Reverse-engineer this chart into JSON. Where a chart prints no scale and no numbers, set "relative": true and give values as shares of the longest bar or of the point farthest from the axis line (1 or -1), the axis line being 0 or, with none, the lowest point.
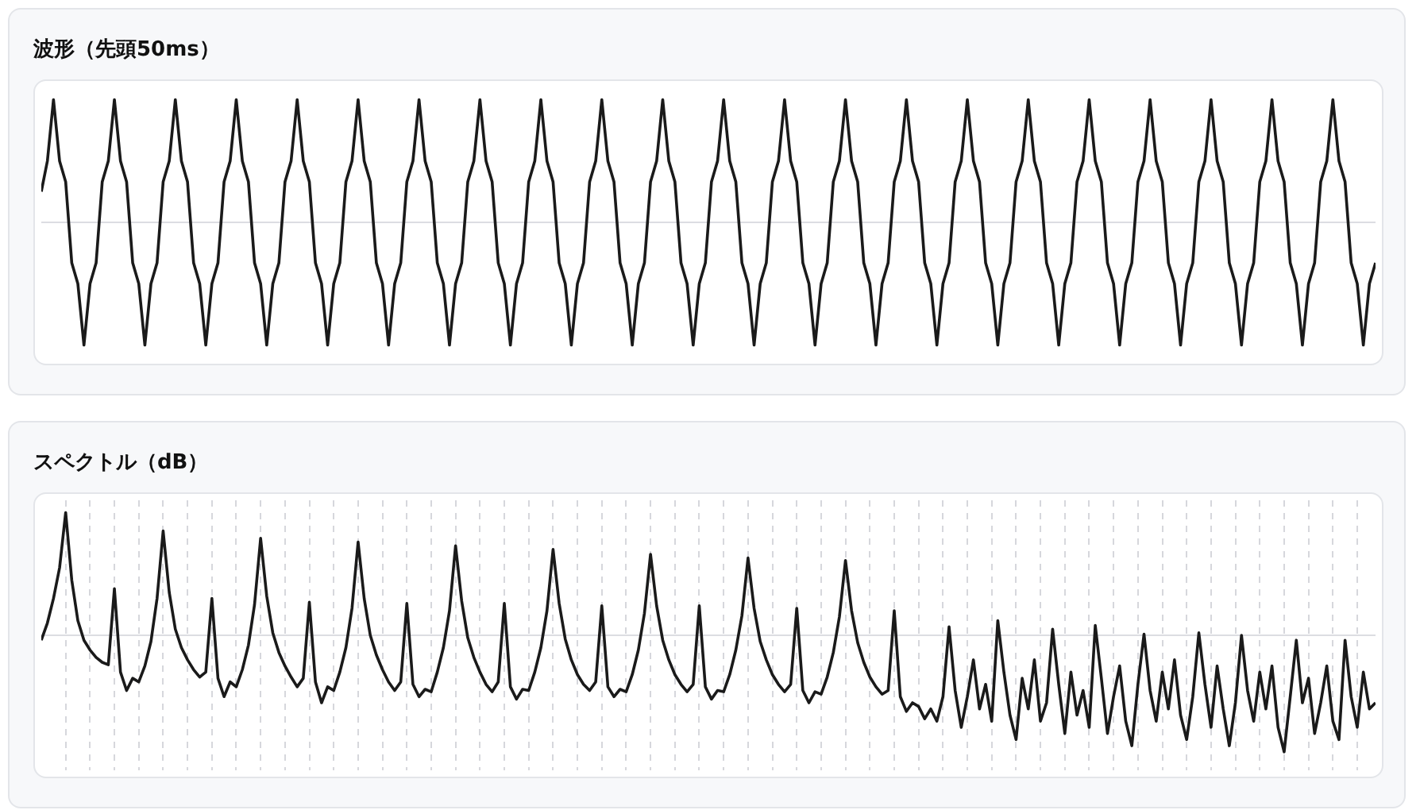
{
  "chart_data": [
    {
      "type": "line",
      "title": "波形（先頭50ms）",
      "relative": true,
      "legend": false,
      "marker": "none",
      "line_style": "solid",
      "categories": [
        null,
        null,
        null,
        null,
        null,
        null,
        null,
        null,
        null,
        null,
        null,
        null,
        null,
        null,
        null,
        null,
        null,
        null,
        null,
        null,
        null,
        null,
        null,
        null,
        null,
        null,
        null,
        null,
        null,
        null,
        null,
        null,
        null,
        null,
        null,
        null,
        null,
        null,
        null,
        null,
        null,
        null,
        null,
        null,
        null,
        null,
        null,
        null,
        null,
        null,
        null,
        null,
        null,
        null,
        null,
        null,
        null,
        null,
        null,
        null,
        null,
        null,
        null,
        null,
        null,
        null,
        null,
        null,
        null,
        null,
        null,
        null,
        null,
        null,
        null,
        null,
        null,
        null,
        null,
        null,
        null,
        null,
        null,
        null,
        null,
        null,
        null,
        null,
        null,
        null,
        null,
        null,
        null,
        null,
        null,
        null,
        null,
        null,
        null,
        null,
        null,
        null,
        null,
        null,
        null,
        null,
        null,
        null,
        null,
        null,
        null,
        null,
        null,
        null,
        null,
        null,
        null,
        null,
        null,
        null,
        null,
        null,
        null,
        null,
        null,
        null,
        null,
        null,
        null,
        null,
        null,
        null,
        null,
        null,
        null,
        null,
        null,
        null,
        null,
        null,
        null,
        null,
        null,
        null,
        null,
        null,
        null,
        null,
        null,
        null,
        null,
        null,
        null,
        null,
        null,
        null,
        null,
        null,
        null,
        null,
        null,
        null,
        null,
        null,
        null,
        null,
        null,
        null,
        null,
        null,
        null,
        null,
        null,
        null,
        null,
        null,
        null,
        null,
        null,
        null,
        null,
        null,
        null,
        null,
        null,
        null,
        null,
        null,
        null,
        null,
        null,
        null,
        null,
        null,
        null,
        null,
        null,
        null,
        null,
        null,
        null,
        null,
        null,
        null,
        null,
        null,
        null,
        null,
        null,
        null,
        null,
        null,
        null,
        null,
        null,
        null,
        null,
        null,
        null,
        null
      ],
      "series": [
        {
          "color": "#1a1a1a",
          "values": [
            0.25,
            0.5,
            1,
            0.5,
            0.33,
            -0.33,
            -0.5,
            -1,
            -0.5,
            -0.33,
            0.33,
            0.5,
            1,
            0.5,
            0.33,
            -0.33,
            -0.5,
            -1,
            -0.5,
            -0.33,
            0.33,
            0.5,
            1,
            0.5,
            0.33,
            -0.33,
            -0.5,
            -1,
            -0.5,
            -0.33,
            0.33,
            0.5,
            1,
            0.5,
            0.33,
            -0.33,
            -0.5,
            -1,
            -0.5,
            -0.33,
            0.33,
            0.5,
            1,
            0.5,
            0.33,
            -0.33,
            -0.5,
            -1,
            -0.5,
            -0.33,
            0.33,
            0.5,
            1,
            0.5,
            0.33,
            -0.33,
            -0.5,
            -1,
            -0.5,
            -0.33,
            0.33,
            0.5,
            1,
            0.5,
            0.33,
            -0.33,
            -0.5,
            -1,
            -0.5,
            -0.33,
            0.33,
            0.5,
            1,
            0.5,
            0.33,
            -0.33,
            -0.5,
            -1,
            -0.5,
            -0.33,
            0.33,
            0.5,
            1,
            0.5,
            0.33,
            -0.33,
            -0.5,
            -1,
            -0.5,
            -0.33,
            0.33,
            0.5,
            1,
            0.5,
            0.33,
            -0.33,
            -0.5,
            -1,
            -0.5,
            -0.33,
            0.33,
            0.5,
            1,
            0.5,
            0.33,
            -0.33,
            -0.5,
            -1,
            -0.5,
            -0.33,
            0.33,
            0.5,
            1,
            0.5,
            0.33,
            -0.33,
            -0.5,
            -1,
            -0.5,
            -0.33,
            0.33,
            0.5,
            1,
            0.5,
            0.33,
            -0.33,
            -0.5,
            -1,
            -0.5,
            -0.33,
            0.33,
            0.5,
            1,
            0.5,
            0.33,
            -0.33,
            -0.5,
            -1,
            -0.5,
            -0.33,
            0.33,
            0.5,
            1,
            0.5,
            0.33,
            -0.33,
            -0.5,
            -1,
            -0.5,
            -0.33,
            0.33,
            0.5,
            1,
            0.5,
            0.33,
            -0.33,
            -0.5,
            -1,
            -0.5,
            -0.33,
            0.33,
            0.5,
            1,
            0.5,
            0.33,
            -0.33,
            -0.5,
            -1,
            -0.5,
            -0.33,
            0.33,
            0.5,
            1,
            0.5,
            0.33,
            -0.33,
            -0.5,
            -1,
            -0.5,
            -0.33,
            0.33,
            0.5,
            1,
            0.5,
            0.33,
            -0.33,
            -0.5,
            -1,
            -0.5,
            -0.33,
            0.33,
            0.5,
            1,
            0.5,
            0.33,
            -0.33,
            -0.5,
            -1,
            -0.5,
            -0.33,
            0.33,
            0.5,
            1,
            0.5,
            0.33,
            -0.33,
            -0.5,
            -1,
            -0.5,
            -0.33,
            0.33,
            0.5,
            1,
            0.5,
            0.33,
            -0.33,
            -0.5,
            -1,
            -0.5,
            -0.33
          ]
        }
      ]
    },
    {
      "type": "line",
      "title": "スペクトル（dB）",
      "relative": true,
      "legend": false,
      "marker": "none",
      "line_style": "solid",
      "grid": "x",
      "categories": [
        null,
        null,
        null,
        null,
        null,
        null,
        null,
        null,
        null,
        null,
        null,
        null,
        null,
        null,
        null,
        null,
        null,
        null,
        null,
        null,
        null,
        null,
        null,
        null,
        null,
        null,
        null,
        null,
        null,
        null,
        null,
        null,
        null,
        null,
        null,
        null,
        null,
        null,
        null,
        null,
        null,
        null,
        null,
        null,
        null,
        null,
        null,
        null,
        null,
        null,
        null,
        null,
        null,
        null,
        null,
        null,
        null,
        null,
        null,
        null,
        null,
        null,
        null,
        null,
        null,
        null,
        null,
        null,
        null,
        null,
        null,
        null,
        null,
        null,
        null,
        null,
        null,
        null,
        null,
        null,
        null,
        null,
        null,
        null,
        null,
        null,
        null,
        null,
        null,
        null,
        null,
        null,
        null,
        null,
        null,
        null,
        null,
        null,
        null,
        null,
        null,
        null,
        null,
        null,
        null,
        null,
        null,
        null,
        null,
        null,
        null,
        null,
        null,
        null,
        null,
        null,
        null,
        null,
        null,
        null,
        null,
        null,
        null,
        null,
        null,
        null,
        null,
        null,
        null,
        null,
        null,
        null,
        null,
        null,
        null,
        null,
        null,
        null,
        null,
        null,
        null,
        null,
        null,
        null,
        null,
        null,
        null,
        null,
        null,
        null,
        null,
        null,
        null,
        null,
        null,
        null,
        null,
        null,
        null,
        null,
        null,
        null,
        null,
        null,
        null,
        null,
        null,
        null,
        null,
        null,
        null,
        null,
        null,
        null,
        null,
        null,
        null,
        null,
        null,
        null,
        null,
        null,
        null,
        null,
        null,
        null,
        null,
        null,
        null,
        null,
        null,
        null,
        null,
        null,
        null,
        null,
        null,
        null,
        null,
        null,
        null,
        null,
        null,
        null,
        null,
        null,
        null,
        null,
        null,
        null,
        null,
        null,
        null,
        null,
        null,
        null,
        null,
        null,
        null,
        null
      ],
      "series": [
        {
          "color": "#1a1a1a",
          "values": [
            -0.04,
            0.1,
            0.3,
            0.55,
            1.0,
            0.45,
            0.12,
            -0.04,
            -0.12,
            -0.18,
            -0.22,
            -0.24,
            0.38,
            -0.3,
            -0.45,
            -0.35,
            -0.38,
            -0.25,
            -0.05,
            0.3,
            0.85,
            0.35,
            0.05,
            -0.1,
            -0.2,
            -0.28,
            -0.34,
            -0.3,
            0.3,
            -0.35,
            -0.5,
            -0.38,
            -0.42,
            -0.28,
            -0.08,
            0.25,
            0.79,
            0.32,
            0.02,
            -0.14,
            -0.25,
            -0.34,
            -0.42,
            -0.35,
            0.27,
            -0.38,
            -0.55,
            -0.42,
            -0.45,
            -0.3,
            -0.1,
            0.22,
            0.76,
            0.3,
            0,
            -0.16,
            -0.28,
            -0.38,
            -0.45,
            -0.38,
            0.26,
            -0.4,
            -0.5,
            -0.44,
            -0.46,
            -0.3,
            -0.1,
            0.2,
            0.73,
            0.28,
            -0.02,
            -0.18,
            -0.3,
            -0.4,
            -0.46,
            -0.38,
            0.26,
            -0.42,
            -0.52,
            -0.44,
            -0.45,
            -0.3,
            -0.1,
            0.2,
            0.7,
            0.26,
            -0.03,
            -0.2,
            -0.32,
            -0.4,
            -0.45,
            -0.38,
            0.24,
            -0.42,
            -0.5,
            -0.44,
            -0.46,
            -0.32,
            -0.12,
            0.18,
            0.66,
            0.24,
            -0.04,
            -0.2,
            -0.32,
            -0.4,
            -0.46,
            -0.4,
            0.24,
            -0.42,
            -0.52,
            -0.45,
            -0.46,
            -0.32,
            -0.12,
            0.16,
            0.63,
            0.22,
            -0.05,
            -0.2,
            -0.32,
            -0.4,
            -0.46,
            -0.4,
            0.22,
            -0.45,
            -0.55,
            -0.46,
            -0.48,
            -0.34,
            -0.14,
            0.15,
            0.61,
            0.2,
            -0.06,
            -0.22,
            -0.34,
            -0.42,
            -0.48,
            -0.45,
            0.2,
            -0.5,
            -0.62,
            -0.55,
            -0.58,
            -0.68,
            -0.6,
            -0.7,
            -0.5,
            0.07,
            -0.45,
            -0.75,
            -0.5,
            -0.2,
            -0.6,
            -0.4,
            -0.7,
            0.12,
            -0.3,
            -0.65,
            -0.85,
            -0.35,
            -0.6,
            -0.2,
            -0.7,
            -0.55,
            0.05,
            -0.4,
            -0.8,
            -0.3,
            -0.65,
            -0.45,
            -0.75,
            0.08,
            -0.35,
            -0.8,
            -0.5,
            -0.25,
            -0.7,
            -0.9,
            -0.4,
            0.01,
            -0.45,
            -0.7,
            -0.3,
            -0.6,
            -0.2,
            -0.65,
            -0.85,
            -0.5,
            0.02,
            -0.4,
            -0.75,
            -0.25,
            -0.6,
            -0.9,
            -0.55,
            0,
            -0.45,
            -0.7,
            -0.3,
            -0.6,
            -0.25,
            -0.75,
            -0.95,
            -0.5,
            -0.04,
            -0.55,
            -0.35,
            -0.8,
            -0.55,
            -0.25,
            -0.7,
            -0.85,
            -0.04,
            -0.5,
            -0.75,
            -0.3,
            -0.6,
            -0.55
          ]
        }
      ]
    }
  ]
}
